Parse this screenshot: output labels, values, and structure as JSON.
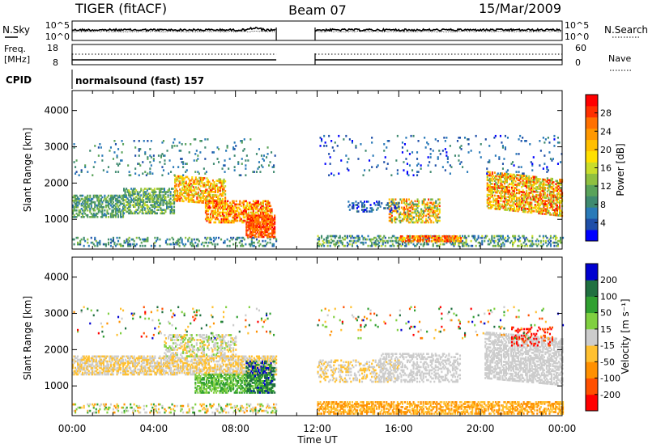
{
  "header": {
    "radar": "TIGER (fitACF)",
    "beam": "Beam 07",
    "date": "15/Mar/2009"
  },
  "noise_panel": {
    "left_label": "N.Sky",
    "right_label": "N.Search",
    "left_ticks": [
      "10^5",
      "10^0"
    ],
    "right_ticks": [
      "10^5",
      "10^0"
    ]
  },
  "freq_panel": {
    "left_label_line1": "Freq.",
    "left_label_line2": "[MHz]",
    "left_ticks": [
      "18",
      "8"
    ],
    "right_ticks": [
      "60",
      "0"
    ],
    "right_label": "Nave"
  },
  "cpid": {
    "label": "CPID",
    "text": "normalsound (fast) 157"
  },
  "time_axis": {
    "label": "Time UT",
    "ticks": [
      "00:00",
      "04:00",
      "08:00",
      "12:00",
      "16:00",
      "20:00",
      "00:00"
    ]
  },
  "chart_data": [
    {
      "type": "heatmap",
      "title": "",
      "ylabel": "Slant Range [km]",
      "xlabel": "Time UT",
      "xlim": [
        0,
        24
      ],
      "ylim": [
        180,
        4550
      ],
      "yticks": [
        "1000",
        "2000",
        "3000",
        "4000"
      ],
      "data_gap_hours": [
        10.0,
        11.9
      ],
      "colorbar": {
        "label": "Power [dB]",
        "ticks": [
          "4",
          "8",
          "12",
          "16",
          "20",
          "24",
          "28"
        ],
        "range": [
          0,
          32
        ],
        "colors": [
          "#0000ff",
          "#1f4fa8",
          "#2a7ab8",
          "#3f8a70",
          "#5aa35a",
          "#8fc040",
          "#c9dd2b",
          "#ffe000",
          "#ffbf00",
          "#ff9800",
          "#ff7000",
          "#ff3000",
          "#ff0000"
        ]
      }
    },
    {
      "type": "heatmap",
      "title": "",
      "ylabel": "Slant Range [km]",
      "xlabel": "Time UT",
      "xlim": [
        0,
        24
      ],
      "ylim": [
        180,
        4550
      ],
      "yticks": [
        "1000",
        "2000",
        "3000",
        "4000"
      ],
      "data_gap_hours": [
        10.0,
        11.9
      ],
      "colorbar": {
        "label": "Velocity [m s⁻¹]",
        "ticks": [
          "200",
          "100",
          "50",
          "15",
          "-15",
          "-50",
          "-100",
          "-200"
        ],
        "range": [
          -250,
          250
        ],
        "colors": [
          "#ff0000",
          "#ff5000",
          "#ff9000",
          "#ffc030",
          "#cccccc",
          "#80d040",
          "#30a030",
          "#207040",
          "#0000d0"
        ]
      }
    }
  ]
}
